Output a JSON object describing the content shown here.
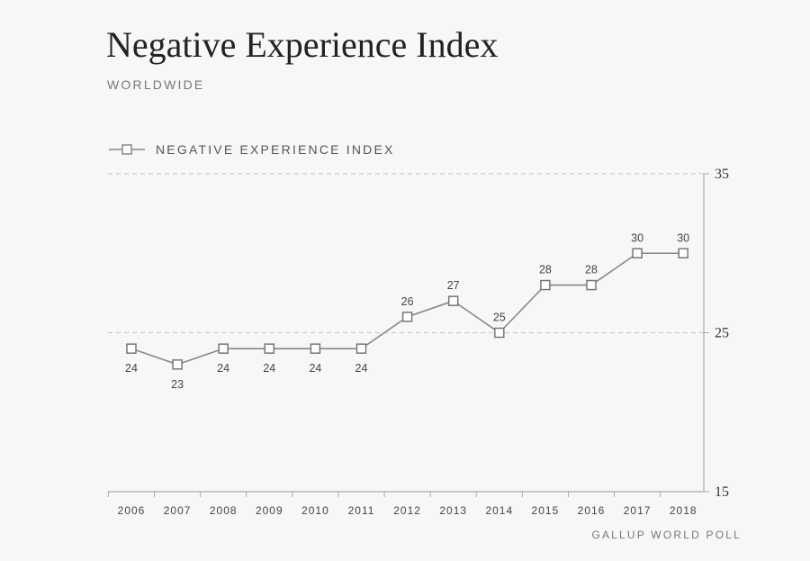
{
  "chart_data": {
    "type": "line",
    "title": "Negative Experience Index",
    "subtitle": "WORLDWIDE",
    "source": "GALLUP WORLD POLL",
    "categories": [
      "2006",
      "2007",
      "2008",
      "2009",
      "2010",
      "2011",
      "2012",
      "2013",
      "2014",
      "2015",
      "2016",
      "2017",
      "2018"
    ],
    "series": [
      {
        "name": "NEGATIVE EXPERIENCE INDEX",
        "values": [
          24,
          23,
          24,
          24,
          24,
          24,
          26,
          27,
          25,
          28,
          28,
          30,
          30
        ]
      }
    ],
    "ylim": [
      15,
      35
    ],
    "yticks": [
      35,
      25,
      15
    ],
    "gridlines": [
      35,
      25
    ],
    "legend_position": "top-left",
    "colors": {
      "line": "#888888",
      "marker_fill": "#ffffff",
      "grid": "#cccccc",
      "axis": "#aaaaaa"
    }
  }
}
